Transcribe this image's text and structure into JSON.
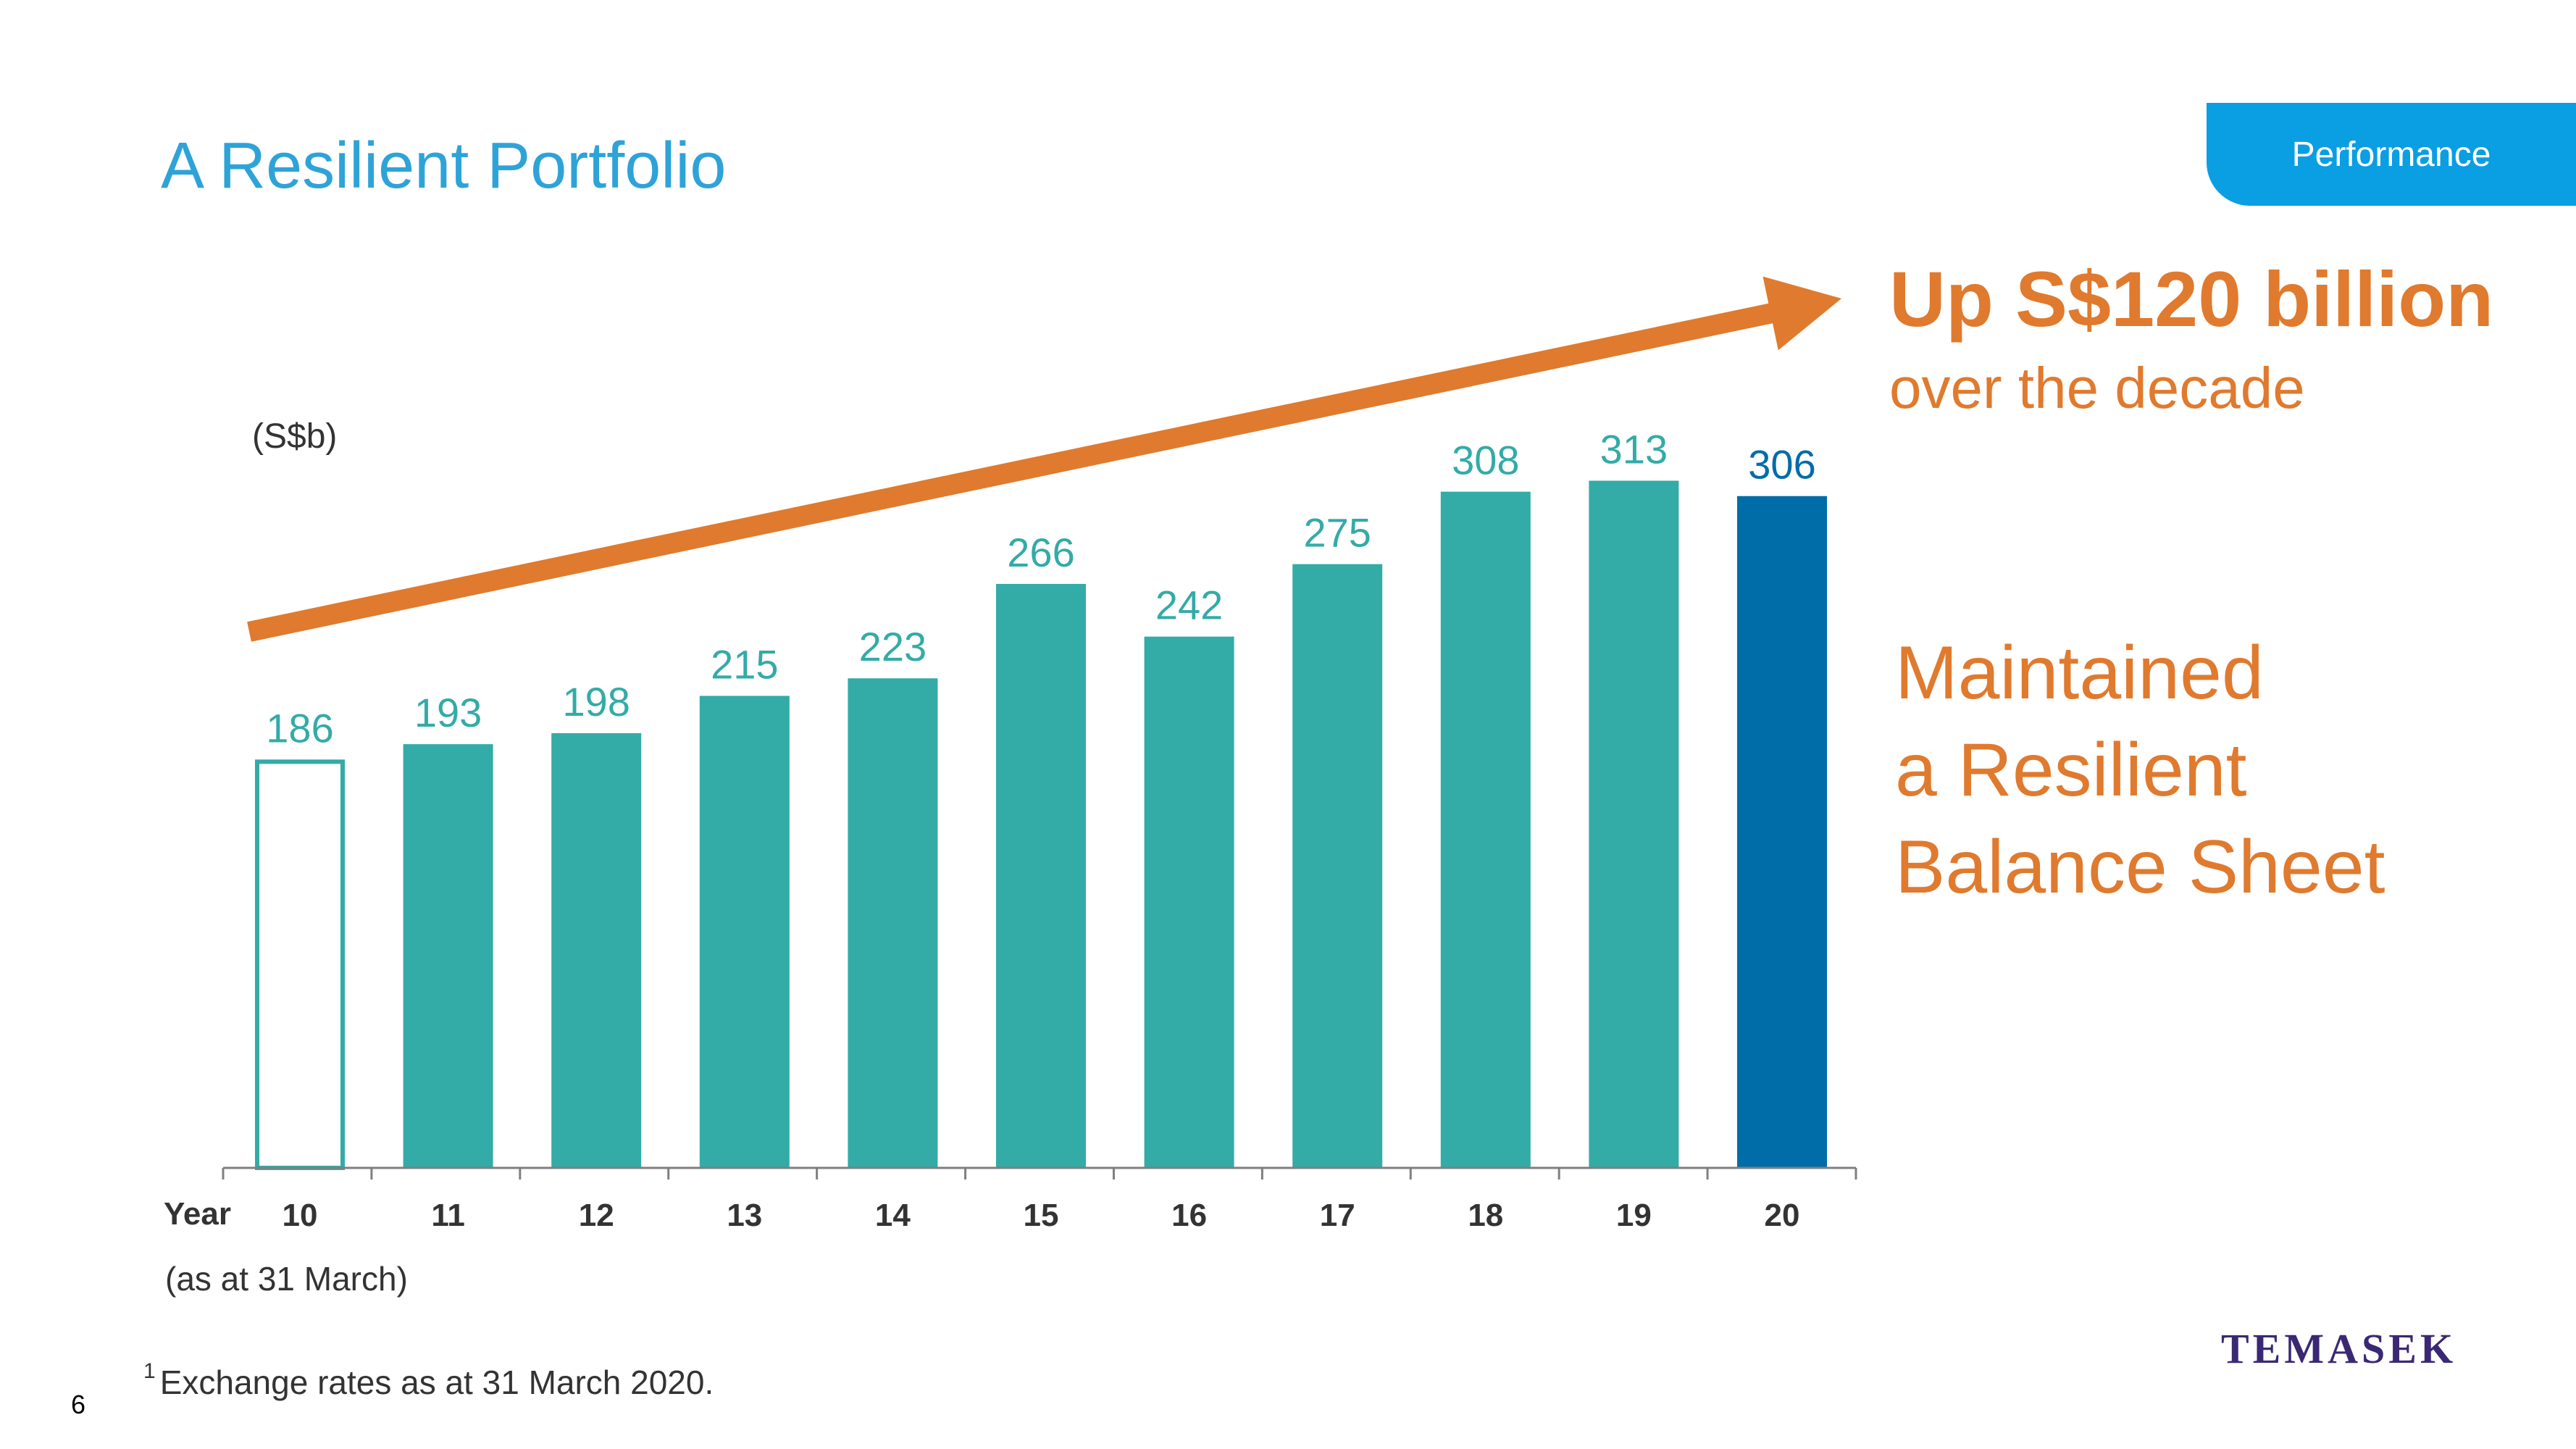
{
  "slide": {
    "title": "A Resilient Portfolio",
    "section_tab": "Performance",
    "page_number": "6",
    "logo_text": "TEMASEK",
    "headline": "Up S$120 billion",
    "subheadline": "over the decade",
    "message_lines": [
      "Maintained",
      "a Resilient",
      "Balance Sheet"
    ],
    "date_note": "(as at 31 March)",
    "footnote_marker": "1",
    "footnote_text": "Exchange rates as at 31 March 2020."
  },
  "colors": {
    "teal": "#33aba7",
    "dark_blue": "#006ca8",
    "orange": "#e07a2e",
    "title_blue": "#2ea3d8",
    "tab_blue": "#0a9ee3"
  },
  "chart_data": {
    "type": "bar",
    "unit_label": "(S$b)",
    "xlabel": "Year",
    "categories": [
      "10",
      "11",
      "12",
      "13",
      "14",
      "15",
      "16",
      "17",
      "18",
      "19",
      "20"
    ],
    "values": [
      186,
      193,
      198,
      215,
      223,
      266,
      242,
      275,
      308,
      313,
      306
    ],
    "bar_styles": [
      "outline",
      "teal",
      "teal",
      "teal",
      "teal",
      "teal",
      "teal",
      "teal",
      "teal",
      "teal",
      "dark-blue"
    ],
    "ylim": [
      0,
      330
    ],
    "grid": false,
    "legend": "none",
    "trend_arrow": "rising"
  }
}
